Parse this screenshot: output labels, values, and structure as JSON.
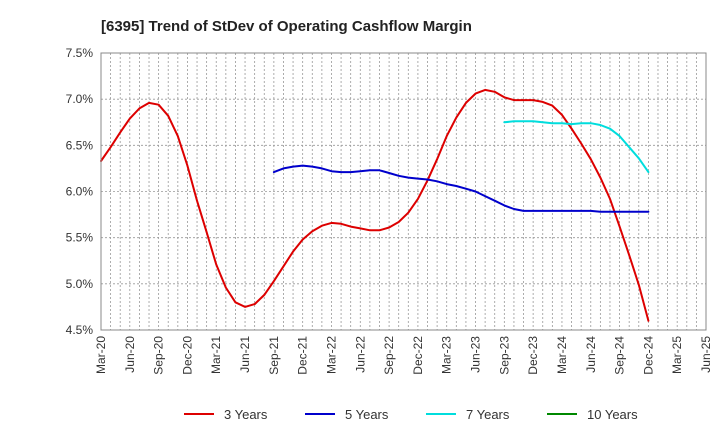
{
  "chart_data": {
    "type": "line",
    "title": "[6395]  Trend of StDev of Operating Cashflow Margin",
    "xlabel": "",
    "ylabel": "",
    "ylim": [
      4.5,
      7.5
    ],
    "yticks": [
      4.5,
      5.0,
      5.5,
      6.0,
      6.5,
      7.0,
      7.5
    ],
    "ytick_labels": [
      "4.5%",
      "5.0%",
      "5.5%",
      "6.0%",
      "6.5%",
      "7.0%",
      "7.5%"
    ],
    "xtick_labels": [
      "Mar-20",
      "Jun-20",
      "Sep-20",
      "Dec-20",
      "Mar-21",
      "Jun-21",
      "Sep-21",
      "Dec-21",
      "Mar-22",
      "Jun-22",
      "Sep-22",
      "Dec-22",
      "Mar-23",
      "Jun-23",
      "Sep-23",
      "Dec-23",
      "Mar-24",
      "Jun-24",
      "Sep-24",
      "Dec-24",
      "Mar-25",
      "Jun-25"
    ],
    "grid": true,
    "legend_position": "bottom",
    "series": [
      {
        "name": "3 Years",
        "color": "#dd0000",
        "x": [
          "Mar-20",
          "Apr-20",
          "May-20",
          "Jun-20",
          "Jul-20",
          "Aug-20",
          "Sep-20",
          "Oct-20",
          "Nov-20",
          "Dec-20",
          "Jan-21",
          "Feb-21",
          "Mar-21",
          "Apr-21",
          "May-21",
          "Jun-21",
          "Jul-21",
          "Aug-21",
          "Sep-21",
          "Oct-21",
          "Nov-21",
          "Dec-21",
          "Jan-22",
          "Feb-22",
          "Mar-22",
          "Apr-22",
          "May-22",
          "Jun-22",
          "Jul-22",
          "Aug-22",
          "Sep-22",
          "Oct-22",
          "Nov-22",
          "Dec-22",
          "Jan-23",
          "Feb-23",
          "Mar-23",
          "Apr-23",
          "May-23",
          "Jun-23",
          "Jul-23",
          "Aug-23",
          "Sep-23",
          "Oct-23",
          "Nov-23",
          "Dec-23",
          "Jan-24",
          "Feb-24",
          "Mar-24",
          "Apr-24",
          "May-24",
          "Jun-24",
          "Jul-24",
          "Aug-24",
          "Sep-24",
          "Oct-24",
          "Nov-24",
          "Dec-24"
        ],
        "values": [
          6.33,
          6.48,
          6.64,
          6.79,
          6.9,
          6.96,
          6.94,
          6.82,
          6.6,
          6.28,
          5.9,
          5.56,
          5.21,
          4.96,
          4.8,
          4.75,
          4.78,
          4.88,
          5.03,
          5.19,
          5.35,
          5.48,
          5.57,
          5.63,
          5.66,
          5.65,
          5.62,
          5.6,
          5.58,
          5.58,
          5.61,
          5.67,
          5.77,
          5.92,
          6.12,
          6.35,
          6.6,
          6.8,
          6.96,
          7.06,
          7.1,
          7.08,
          7.02,
          6.99,
          6.99,
          6.99,
          6.97,
          6.93,
          6.83,
          6.68,
          6.52,
          6.35,
          6.15,
          5.92,
          5.62,
          5.31,
          4.99,
          4.6
        ]
      },
      {
        "name": "5 Years",
        "color": "#0000cc",
        "x": [
          "Sep-21",
          "Oct-21",
          "Nov-21",
          "Dec-21",
          "Jan-22",
          "Feb-22",
          "Mar-22",
          "Apr-22",
          "May-22",
          "Jun-22",
          "Jul-22",
          "Aug-22",
          "Sep-22",
          "Oct-22",
          "Nov-22",
          "Dec-22",
          "Jan-23",
          "Feb-23",
          "Mar-23",
          "Apr-23",
          "May-23",
          "Jun-23",
          "Jul-23",
          "Aug-23",
          "Sep-23",
          "Oct-23",
          "Nov-23",
          "Dec-23",
          "Jan-24",
          "Feb-24",
          "Mar-24",
          "Apr-24",
          "May-24",
          "Jun-24",
          "Jul-24",
          "Aug-24",
          "Sep-24",
          "Oct-24",
          "Nov-24",
          "Dec-24"
        ],
        "values": [
          6.21,
          6.25,
          6.27,
          6.28,
          6.27,
          6.25,
          6.22,
          6.21,
          6.21,
          6.22,
          6.23,
          6.23,
          6.2,
          6.17,
          6.15,
          6.14,
          6.13,
          6.11,
          6.08,
          6.06,
          6.03,
          6.0,
          5.95,
          5.9,
          5.85,
          5.81,
          5.79,
          5.79,
          5.79,
          5.79,
          5.79,
          5.79,
          5.79,
          5.79,
          5.78,
          5.78,
          5.78,
          5.78,
          5.78,
          5.78
        ]
      },
      {
        "name": "7 Years",
        "color": "#00dddd",
        "x": [
          "Sep-23",
          "Oct-23",
          "Nov-23",
          "Dec-23",
          "Jan-24",
          "Feb-24",
          "Mar-24",
          "Apr-24",
          "May-24",
          "Jun-24",
          "Jul-24",
          "Aug-24",
          "Sep-24",
          "Oct-24",
          "Nov-24",
          "Dec-24"
        ],
        "values": [
          6.75,
          6.76,
          6.76,
          6.76,
          6.75,
          6.74,
          6.74,
          6.73,
          6.74,
          6.74,
          6.72,
          6.68,
          6.6,
          6.48,
          6.36,
          6.21
        ]
      },
      {
        "name": "10 Years",
        "color": "#008800",
        "x": [],
        "values": []
      }
    ]
  }
}
